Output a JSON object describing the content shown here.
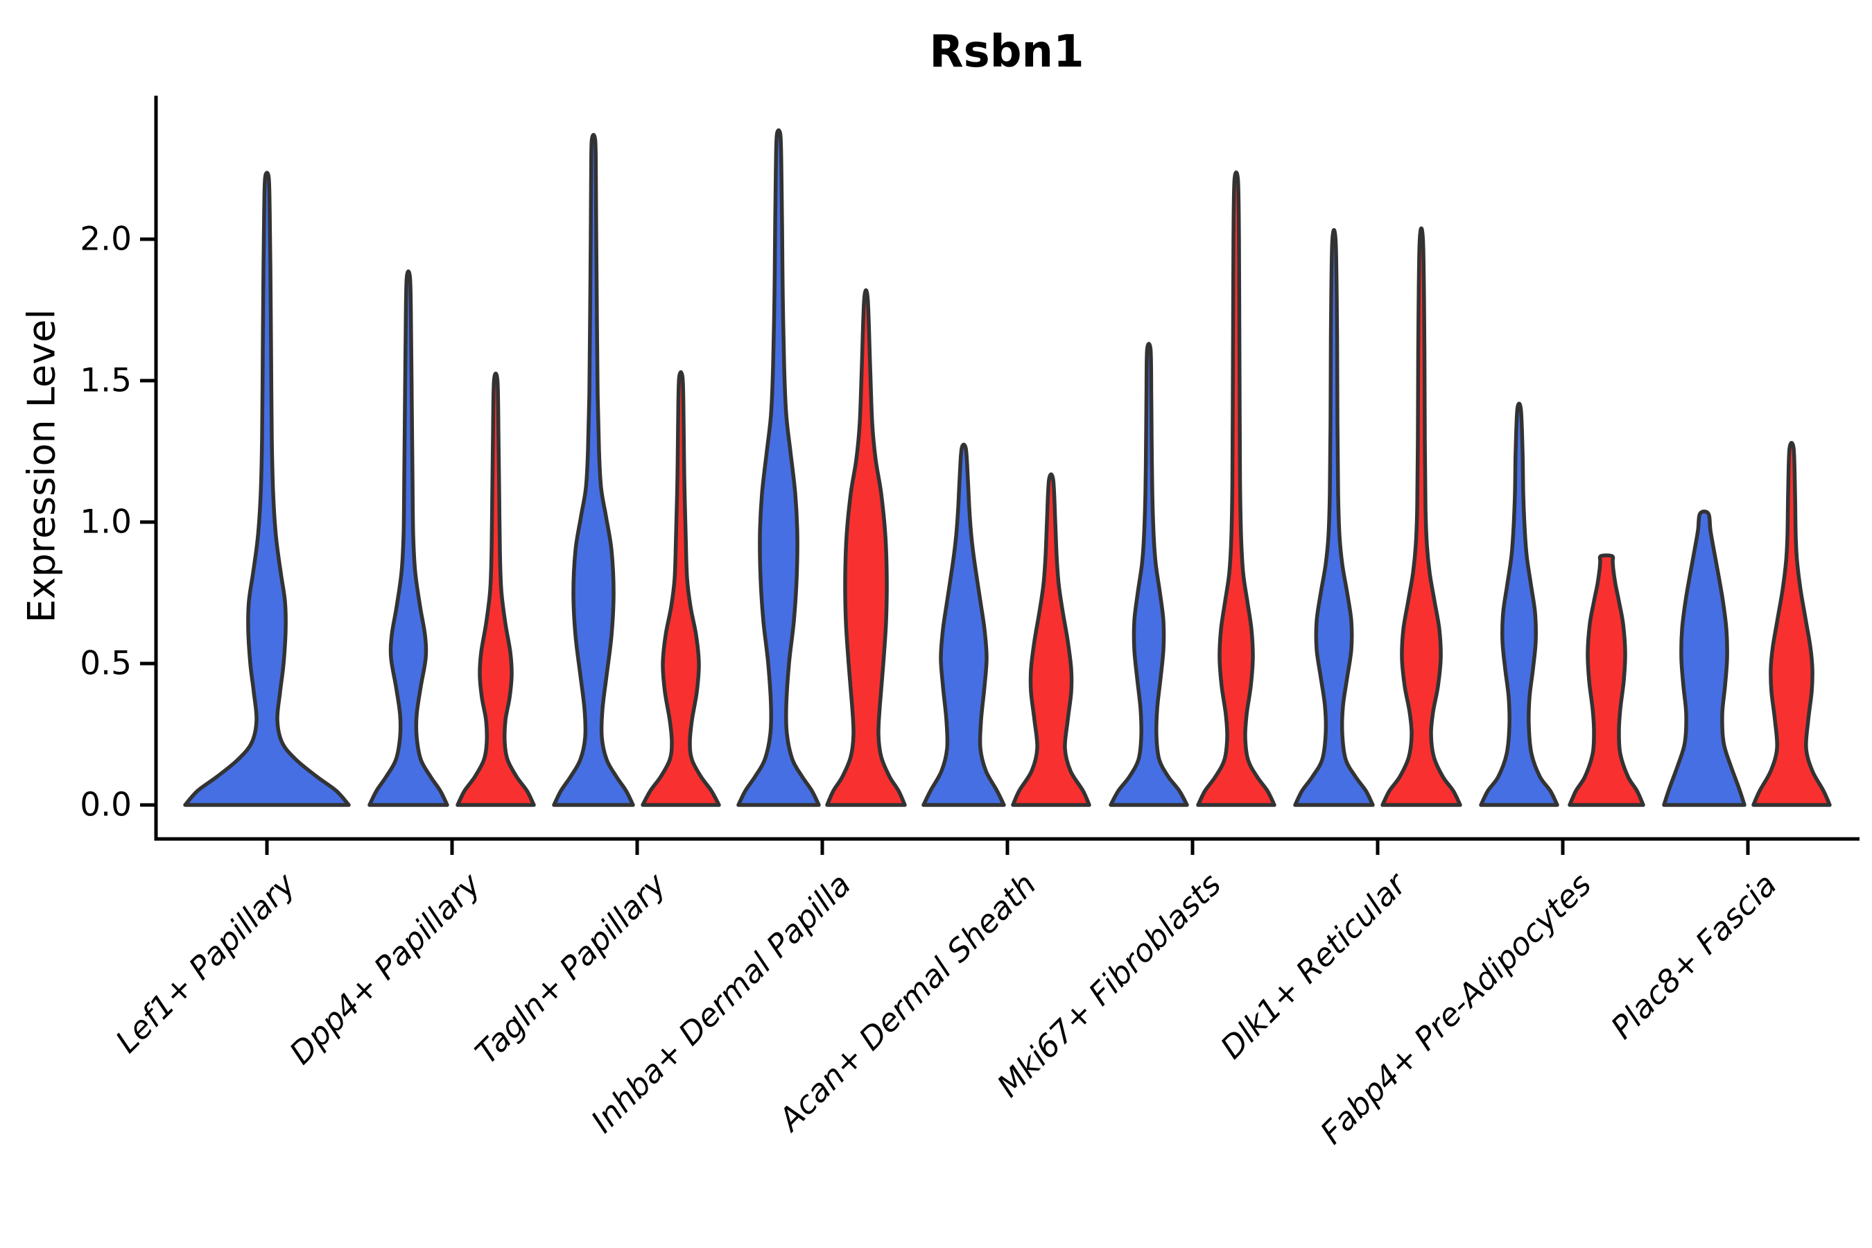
{
  "title": "Rsbn1",
  "y_axis": {
    "label": "Expression Level",
    "tick_labels": [
      "0.0",
      "0.5",
      "1.0",
      "1.5",
      "2.0"
    ]
  },
  "x_axis": {
    "categories": [
      "Lef1+ Papillary",
      "Dpp4+ Papillary",
      "Tagln+ Papillary",
      "Inhba+ Dermal Papilla",
      "Acan+ Dermal Sheath",
      "Mki67+ Fibroblasts",
      "Dlk1+ Reticular",
      "Fabp4+ Pre-Adipocytes",
      "Plac8+ Fascia"
    ]
  },
  "chart_data": {
    "type": "violin",
    "title": "Rsbn1",
    "xlabel": "",
    "ylabel": "Expression Level",
    "ylim": [
      0,
      2.5
    ],
    "yticks": [
      0.0,
      0.5,
      1.0,
      1.5,
      2.0
    ],
    "grid": false,
    "legend_position": "none",
    "categories": [
      "Lef1+ Papillary",
      "Dpp4+ Papillary",
      "Tagln+ Papillary",
      "Inhba+ Dermal Papilla",
      "Acan+ Dermal Sheath",
      "Mki67+ Fibroblasts",
      "Dlk1+ Reticular",
      "Fabp4+ Pre-Adipocytes",
      "Plac8+ Fascia"
    ],
    "series_colors": {
      "blue": "#466FE3",
      "red": "#F93030"
    },
    "outline_color": "#333333",
    "violins": [
      {
        "category": "Lef1+ Papillary",
        "category_index": 0,
        "side": "center",
        "color_key": "blue",
        "max_expression": 2.22,
        "profile": [
          [
            0,
            118
          ],
          [
            0.05,
            100
          ],
          [
            0.1,
            72
          ],
          [
            0.16,
            42
          ],
          [
            0.22,
            22
          ],
          [
            0.3,
            15
          ],
          [
            0.4,
            19
          ],
          [
            0.5,
            24
          ],
          [
            0.62,
            27
          ],
          [
            0.72,
            26
          ],
          [
            0.82,
            20
          ],
          [
            0.95,
            13
          ],
          [
            1.1,
            9
          ],
          [
            1.3,
            7
          ],
          [
            1.6,
            6
          ],
          [
            1.9,
            5
          ],
          [
            2.1,
            4
          ],
          [
            2.22,
            2.5
          ]
        ]
      },
      {
        "category": "Dpp4+ Papillary",
        "category_index": 1,
        "side": "left",
        "color_key": "blue",
        "max_expression": 1.86,
        "profile": [
          [
            0,
            56
          ],
          [
            0.05,
            46
          ],
          [
            0.1,
            32
          ],
          [
            0.16,
            18
          ],
          [
            0.24,
            12
          ],
          [
            0.32,
            12
          ],
          [
            0.42,
            18
          ],
          [
            0.52,
            25
          ],
          [
            0.6,
            24
          ],
          [
            0.7,
            17
          ],
          [
            0.82,
            10
          ],
          [
            0.95,
            7
          ],
          [
            1.15,
            6
          ],
          [
            1.4,
            5
          ],
          [
            1.65,
            4
          ],
          [
            1.86,
            2.5
          ]
        ]
      },
      {
        "category": "Dpp4+ Papillary",
        "category_index": 1,
        "side": "right",
        "color_key": "red",
        "max_expression": 1.5,
        "profile": [
          [
            0,
            55
          ],
          [
            0.05,
            45
          ],
          [
            0.1,
            30
          ],
          [
            0.16,
            17
          ],
          [
            0.22,
            13
          ],
          [
            0.3,
            14
          ],
          [
            0.38,
            20
          ],
          [
            0.46,
            23
          ],
          [
            0.54,
            21
          ],
          [
            0.64,
            14
          ],
          [
            0.76,
            8
          ],
          [
            0.9,
            6
          ],
          [
            1.1,
            5
          ],
          [
            1.3,
            4
          ],
          [
            1.5,
            2.5
          ]
        ]
      },
      {
        "category": "Tagln+ Papillary",
        "category_index": 2,
        "side": "left",
        "color_key": "blue",
        "max_expression": 2.35,
        "profile": [
          [
            0,
            57
          ],
          [
            0.05,
            47
          ],
          [
            0.1,
            33
          ],
          [
            0.16,
            19
          ],
          [
            0.24,
            12
          ],
          [
            0.34,
            13
          ],
          [
            0.46,
            19
          ],
          [
            0.6,
            26
          ],
          [
            0.75,
            29
          ],
          [
            0.9,
            26
          ],
          [
            1.02,
            18
          ],
          [
            1.12,
            11
          ],
          [
            1.25,
            8
          ],
          [
            1.45,
            6
          ],
          [
            1.7,
            5
          ],
          [
            2.0,
            4
          ],
          [
            2.2,
            3.5
          ],
          [
            2.35,
            2.5
          ]
        ]
      },
      {
        "category": "Tagln+ Papillary",
        "category_index": 2,
        "side": "right",
        "color_key": "red",
        "max_expression": 1.51,
        "profile": [
          [
            0,
            55
          ],
          [
            0.05,
            44
          ],
          [
            0.1,
            29
          ],
          [
            0.16,
            16
          ],
          [
            0.22,
            13
          ],
          [
            0.3,
            16
          ],
          [
            0.4,
            23
          ],
          [
            0.5,
            26
          ],
          [
            0.6,
            22
          ],
          [
            0.7,
            14
          ],
          [
            0.8,
            9
          ],
          [
            0.95,
            7
          ],
          [
            1.15,
            5
          ],
          [
            1.35,
            4
          ],
          [
            1.51,
            2.5
          ]
        ]
      },
      {
        "category": "Inhba+ Dermal Papilla",
        "category_index": 3,
        "side": "left",
        "color_key": "blue",
        "max_expression": 2.37,
        "profile": [
          [
            0,
            58
          ],
          [
            0.05,
            48
          ],
          [
            0.1,
            34
          ],
          [
            0.16,
            20
          ],
          [
            0.25,
            12
          ],
          [
            0.35,
            11
          ],
          [
            0.5,
            15
          ],
          [
            0.65,
            22
          ],
          [
            0.8,
            26
          ],
          [
            0.95,
            27
          ],
          [
            1.1,
            24
          ],
          [
            1.25,
            17
          ],
          [
            1.38,
            11
          ],
          [
            1.55,
            8
          ],
          [
            1.8,
            6
          ],
          [
            2.05,
            5
          ],
          [
            2.25,
            4
          ],
          [
            2.37,
            2.5
          ]
        ]
      },
      {
        "category": "Inhba+ Dermal Papilla",
        "category_index": 3,
        "side": "right",
        "color_key": "red",
        "max_expression": 1.79,
        "profile": [
          [
            0,
            56
          ],
          [
            0.05,
            47
          ],
          [
            0.1,
            34
          ],
          [
            0.17,
            22
          ],
          [
            0.25,
            18
          ],
          [
            0.35,
            20
          ],
          [
            0.5,
            25
          ],
          [
            0.65,
            29
          ],
          [
            0.8,
            30
          ],
          [
            0.95,
            28
          ],
          [
            1.1,
            22
          ],
          [
            1.22,
            14
          ],
          [
            1.35,
            9
          ],
          [
            1.55,
            6
          ],
          [
            1.79,
            2.5
          ]
        ]
      },
      {
        "category": "Acan+ Dermal Sheath",
        "category_index": 4,
        "side": "left",
        "color_key": "blue",
        "max_expression": 1.26,
        "profile": [
          [
            0,
            58
          ],
          [
            0.05,
            48
          ],
          [
            0.12,
            32
          ],
          [
            0.2,
            24
          ],
          [
            0.3,
            25
          ],
          [
            0.42,
            30
          ],
          [
            0.52,
            33
          ],
          [
            0.62,
            30
          ],
          [
            0.72,
            24
          ],
          [
            0.85,
            16
          ],
          [
            0.95,
            11
          ],
          [
            1.05,
            8
          ],
          [
            1.15,
            6
          ],
          [
            1.26,
            3
          ]
        ]
      },
      {
        "category": "Acan+ Dermal Sheath",
        "category_index": 4,
        "side": "right",
        "color_key": "red",
        "max_expression": 1.15,
        "profile": [
          [
            0,
            55
          ],
          [
            0.05,
            46
          ],
          [
            0.12,
            28
          ],
          [
            0.2,
            20
          ],
          [
            0.3,
            24
          ],
          [
            0.4,
            29
          ],
          [
            0.48,
            29
          ],
          [
            0.58,
            24
          ],
          [
            0.68,
            17
          ],
          [
            0.78,
            11
          ],
          [
            0.88,
            8
          ],
          [
            1.0,
            6
          ],
          [
            1.15,
            3
          ]
        ]
      },
      {
        "category": "Mki67+ Fibroblasts",
        "category_index": 5,
        "side": "left",
        "color_key": "blue",
        "max_expression": 1.61,
        "profile": [
          [
            0,
            55
          ],
          [
            0.05,
            44
          ],
          [
            0.1,
            28
          ],
          [
            0.16,
            15
          ],
          [
            0.24,
            11
          ],
          [
            0.34,
            12
          ],
          [
            0.45,
            17
          ],
          [
            0.55,
            21
          ],
          [
            0.65,
            21
          ],
          [
            0.75,
            16
          ],
          [
            0.85,
            10
          ],
          [
            0.95,
            7
          ],
          [
            1.1,
            5
          ],
          [
            1.3,
            4
          ],
          [
            1.45,
            3.5
          ],
          [
            1.61,
            2.5
          ]
        ]
      },
      {
        "category": "Mki67+ Fibroblasts",
        "category_index": 5,
        "side": "right",
        "color_key": "red",
        "max_expression": 2.21,
        "profile": [
          [
            0,
            55
          ],
          [
            0.05,
            45
          ],
          [
            0.1,
            30
          ],
          [
            0.16,
            17
          ],
          [
            0.24,
            13
          ],
          [
            0.32,
            15
          ],
          [
            0.42,
            21
          ],
          [
            0.52,
            24
          ],
          [
            0.62,
            22
          ],
          [
            0.72,
            16
          ],
          [
            0.82,
            10
          ],
          [
            0.95,
            7
          ],
          [
            1.15,
            5.5
          ],
          [
            1.4,
            5
          ],
          [
            1.7,
            4.5
          ],
          [
            2.0,
            4
          ],
          [
            2.21,
            2.5
          ]
        ]
      },
      {
        "category": "Dlk1+ Reticular",
        "category_index": 6,
        "side": "left",
        "color_key": "blue",
        "max_expression": 1.99,
        "profile": [
          [
            0,
            56
          ],
          [
            0.05,
            46
          ],
          [
            0.1,
            31
          ],
          [
            0.16,
            17
          ],
          [
            0.25,
            12
          ],
          [
            0.35,
            13
          ],
          [
            0.45,
            19
          ],
          [
            0.55,
            25
          ],
          [
            0.65,
            25
          ],
          [
            0.75,
            19
          ],
          [
            0.85,
            12
          ],
          [
            0.95,
            8
          ],
          [
            1.1,
            6
          ],
          [
            1.35,
            5
          ],
          [
            1.65,
            4.5
          ],
          [
            1.99,
            2.5
          ]
        ]
      },
      {
        "category": "Dlk1+ Reticular",
        "category_index": 6,
        "side": "right",
        "color_key": "red",
        "max_expression": 1.99,
        "profile": [
          [
            0,
            56
          ],
          [
            0.05,
            46
          ],
          [
            0.1,
            31
          ],
          [
            0.17,
            18
          ],
          [
            0.25,
            14
          ],
          [
            0.33,
            17
          ],
          [
            0.42,
            24
          ],
          [
            0.52,
            28
          ],
          [
            0.62,
            26
          ],
          [
            0.72,
            19
          ],
          [
            0.82,
            12
          ],
          [
            0.92,
            8
          ],
          [
            1.05,
            6
          ],
          [
            1.3,
            5
          ],
          [
            1.6,
            4.5
          ],
          [
            1.99,
            2.5
          ]
        ]
      },
      {
        "category": "Fabp4+ Pre-Adipocytes",
        "category_index": 7,
        "side": "left",
        "color_key": "blue",
        "max_expression": 1.4,
        "profile": [
          [
            0,
            55
          ],
          [
            0.05,
            45
          ],
          [
            0.1,
            30
          ],
          [
            0.18,
            18
          ],
          [
            0.28,
            14
          ],
          [
            0.38,
            15
          ],
          [
            0.48,
            20
          ],
          [
            0.58,
            24
          ],
          [
            0.68,
            23
          ],
          [
            0.78,
            17
          ],
          [
            0.88,
            11
          ],
          [
            0.98,
            8
          ],
          [
            1.1,
            6
          ],
          [
            1.25,
            5
          ],
          [
            1.4,
            2.5
          ]
        ]
      },
      {
        "category": "Fabp4+ Pre-Adipocytes",
        "category_index": 7,
        "side": "right",
        "color_key": "red",
        "max_expression": 0.88,
        "profile": [
          [
            0,
            53
          ],
          [
            0.05,
            44
          ],
          [
            0.1,
            31
          ],
          [
            0.18,
            20
          ],
          [
            0.26,
            18
          ],
          [
            0.34,
            20
          ],
          [
            0.44,
            25
          ],
          [
            0.54,
            27
          ],
          [
            0.64,
            24
          ],
          [
            0.72,
            18
          ],
          [
            0.78,
            13
          ],
          [
            0.83,
            10
          ],
          [
            0.86,
            9
          ],
          [
            0.88,
            8
          ]
        ]
      },
      {
        "category": "Plac8+ Fascia",
        "category_index": 8,
        "side": "left",
        "color_key": "blue",
        "max_expression": 1.03,
        "profile": [
          [
            0,
            58
          ],
          [
            0.06,
            50
          ],
          [
            0.14,
            38
          ],
          [
            0.22,
            28
          ],
          [
            0.32,
            26
          ],
          [
            0.42,
            30
          ],
          [
            0.52,
            33
          ],
          [
            0.62,
            32
          ],
          [
            0.72,
            27
          ],
          [
            0.82,
            20
          ],
          [
            0.9,
            14
          ],
          [
            0.97,
            9
          ],
          [
            1.03,
            6
          ]
        ]
      },
      {
        "category": "Plac8+ Fascia",
        "category_index": 8,
        "side": "right",
        "color_key": "red",
        "max_expression": 1.26,
        "profile": [
          [
            0,
            55
          ],
          [
            0.05,
            46
          ],
          [
            0.12,
            30
          ],
          [
            0.2,
            21
          ],
          [
            0.3,
            24
          ],
          [
            0.4,
            29
          ],
          [
            0.48,
            30
          ],
          [
            0.56,
            27
          ],
          [
            0.66,
            20
          ],
          [
            0.76,
            13
          ],
          [
            0.86,
            8
          ],
          [
            0.95,
            6
          ],
          [
            1.1,
            5
          ],
          [
            1.26,
            3
          ]
        ]
      }
    ]
  }
}
